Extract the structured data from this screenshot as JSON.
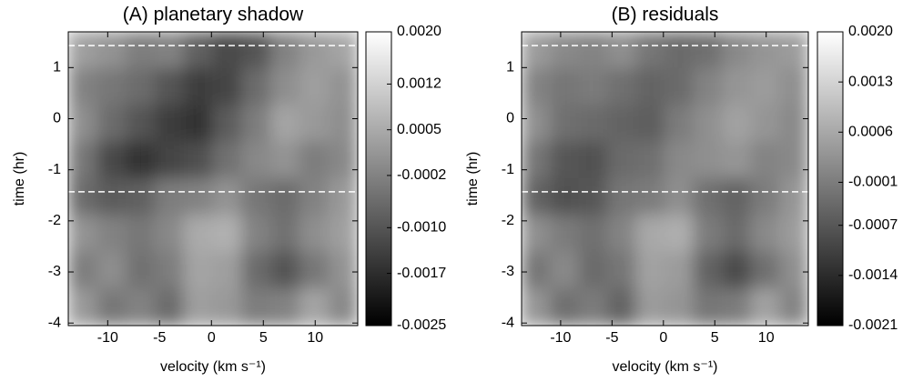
{
  "chart_data": [
    {
      "type": "heatmap",
      "title": "(A) planetary shadow",
      "x_label": "velocity  (km s⁻¹)",
      "y_label": "time (hr)",
      "xlim": [
        -13.8,
        14.1
      ],
      "ylim": [
        -4.05,
        1.7
      ],
      "xticks": [
        -10,
        -5,
        0,
        5,
        10
      ],
      "yticks": [
        -4,
        -3,
        -2,
        -1,
        0,
        1
      ],
      "hlines": [
        1.43,
        -1.43
      ],
      "clim": [
        -0.0025,
        0.002
      ],
      "cticks": [
        {
          "value": 0.002,
          "label": "0.0020"
        },
        {
          "value": 0.0012,
          "label": "0.0012"
        },
        {
          "value": 0.0005,
          "label": "0.0005"
        },
        {
          "value": -0.0002,
          "label": "-0.0002"
        },
        {
          "value": -0.001,
          "label": "-0.0010"
        },
        {
          "value": -0.0017,
          "label": "-0.0017"
        },
        {
          "value": -0.0025,
          "label": "-0.0025"
        }
      ],
      "z": [
        [
          0.0003,
          0.0001,
          -0.0003,
          -0.0002,
          -0.0008,
          -0.0012,
          -0.001,
          -0.0002,
          0.0002,
          0.0004
        ],
        [
          -0.0002,
          -0.0004,
          -0.0006,
          -0.001,
          -0.0014,
          -0.0013,
          -0.0006,
          0.0,
          0.0003,
          0.0001
        ],
        [
          0.0,
          -0.0006,
          -0.001,
          -0.0014,
          -0.0016,
          -0.0009,
          -0.0003,
          0.0004,
          0.0002,
          0.0
        ],
        [
          -0.0004,
          -0.0012,
          -0.0016,
          -0.0013,
          -0.0011,
          -0.0005,
          -0.0001,
          0.0001,
          -0.0003,
          -0.0001
        ],
        [
          -0.0006,
          -0.0009,
          -0.0008,
          -0.0003,
          -0.0002,
          0.0001,
          -0.0004,
          -0.0006,
          -0.0002,
          0.0002
        ],
        [
          0.0001,
          -0.0002,
          -0.0004,
          -0.0001,
          0.0005,
          0.0006,
          -0.0002,
          -0.0005,
          0.0,
          0.0003
        ],
        [
          -0.0003,
          0.0,
          -0.0005,
          -0.0003,
          0.0004,
          0.0003,
          -0.0006,
          -0.001,
          -0.0004,
          0.0001
        ],
        [
          0.0002,
          -0.0004,
          -0.0002,
          -0.0006,
          0.0003,
          0.0002,
          -0.0003,
          -0.0002,
          0.0004,
          -0.0001
        ]
      ]
    },
    {
      "type": "heatmap",
      "title": "(B) residuals",
      "x_label": "velocity  (km s⁻¹)",
      "y_label": "time (hr)",
      "xlim": [
        -13.8,
        14.1
      ],
      "ylim": [
        -4.05,
        1.7
      ],
      "xticks": [
        -10,
        -5,
        0,
        5,
        10
      ],
      "yticks": [
        -4,
        -3,
        -2,
        -1,
        0,
        1
      ],
      "hlines": [
        1.43,
        -1.43
      ],
      "clim": [
        -0.0021,
        0.002
      ],
      "cticks": [
        {
          "value": 0.002,
          "label": "0.0020"
        },
        {
          "value": 0.0013,
          "label": "0.0013"
        },
        {
          "value": 0.0006,
          "label": "0.0006"
        },
        {
          "value": -0.0001,
          "label": "-0.0001"
        },
        {
          "value": -0.0007,
          "label": "-0.0007"
        },
        {
          "value": -0.0014,
          "label": "-0.0014"
        },
        {
          "value": -0.0021,
          "label": "-0.0021"
        }
      ],
      "z": [
        [
          0.0004,
          0.0001,
          0.0,
          0.0002,
          -0.0002,
          -0.0004,
          -0.0003,
          0.0001,
          0.0003,
          0.0004
        ],
        [
          0.0,
          -0.0002,
          -0.0001,
          -0.0003,
          -0.0005,
          -0.0004,
          0.0,
          0.0003,
          0.0004,
          0.0002
        ],
        [
          0.0002,
          -0.0003,
          -0.0004,
          -0.0005,
          -0.0006,
          -0.0001,
          0.0002,
          0.0005,
          0.0003,
          0.0001
        ],
        [
          -0.0002,
          -0.0007,
          -0.0008,
          -0.0004,
          -0.0003,
          0.0001,
          0.0002,
          0.0003,
          0.0,
          0.0001
        ],
        [
          -0.0005,
          -0.0008,
          -0.0007,
          -0.0002,
          -0.0001,
          0.0002,
          -0.0003,
          -0.0005,
          -0.0001,
          0.0003
        ],
        [
          0.0002,
          -0.0001,
          -0.0003,
          0.0,
          0.0006,
          0.0007,
          -0.0001,
          -0.0004,
          0.0001,
          0.0004
        ],
        [
          -0.0002,
          0.0001,
          -0.0004,
          -0.0002,
          0.0005,
          0.0004,
          -0.0005,
          -0.0009,
          -0.0003,
          0.0002
        ],
        [
          0.0003,
          -0.0003,
          -0.0001,
          -0.0005,
          0.0004,
          0.0003,
          -0.0002,
          -0.0001,
          0.0005,
          0.0
        ]
      ]
    }
  ]
}
